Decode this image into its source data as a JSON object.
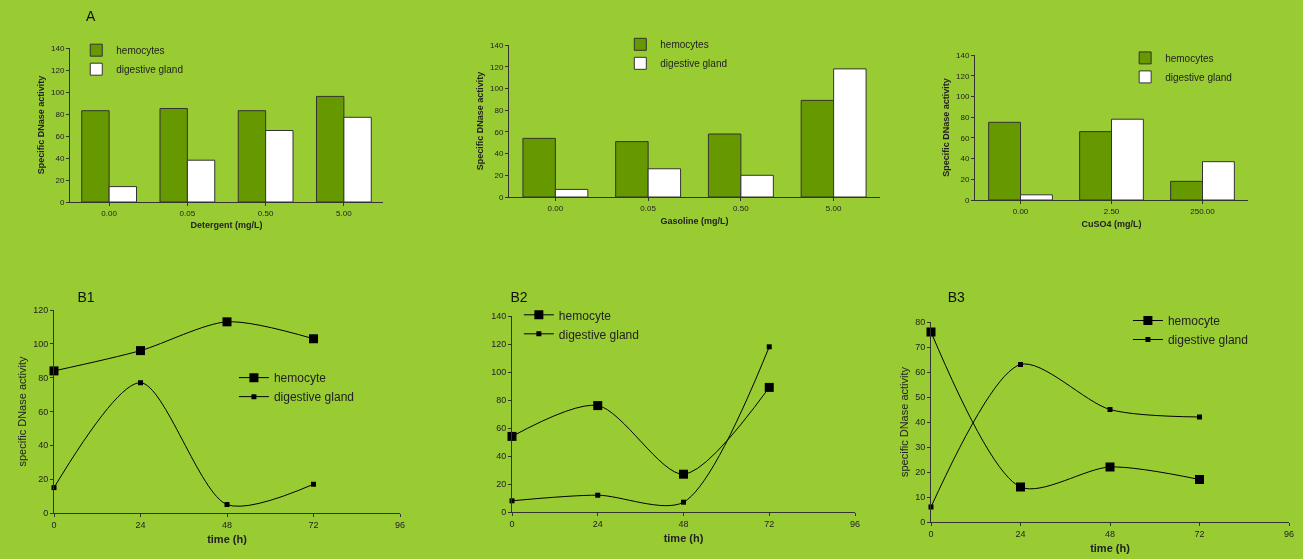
{
  "chart_data": [
    {
      "type": "bar",
      "title": "A",
      "xlabel": "Detergent (mg/L)",
      "ylabel": "Specific DNase activity",
      "categories": [
        "0.00",
        "0.05",
        "0.50",
        "5.00"
      ],
      "ylim": [
        0,
        140
      ],
      "yticks": [
        0,
        20,
        40,
        60,
        80,
        100,
        120,
        140
      ],
      "legend": "top left",
      "series": [
        {
          "name": "hemocytes",
          "color": "#669900",
          "values": [
            83,
            85,
            83,
            96
          ]
        },
        {
          "name": "digestive gland",
          "color": "#ffffff",
          "values": [
            14,
            38,
            65,
            77
          ]
        }
      ]
    },
    {
      "type": "bar",
      "xlabel": "Gasoline (mg/L)",
      "ylabel": "Specific DNase activity",
      "categories": [
        "0.00",
        "0.05",
        "0.50",
        "5.00"
      ],
      "ylim": [
        0,
        140
      ],
      "yticks": [
        0,
        20,
        40,
        60,
        80,
        100,
        120,
        140
      ],
      "legend": "top",
      "series": [
        {
          "name": "hemocytes",
          "color": "#669900",
          "values": [
            54,
            51,
            58,
            89
          ]
        },
        {
          "name": "digestive gland",
          "color": "#ffffff",
          "values": [
            7,
            26,
            20,
            118
          ]
        }
      ]
    },
    {
      "type": "bar",
      "xlabel": "CuSO4 (mg/L)",
      "ylabel": "Specific DNase activity",
      "categories": [
        "0.00",
        "2.50",
        "250.00"
      ],
      "ylim": [
        0,
        140
      ],
      "yticks": [
        0,
        20,
        40,
        60,
        80,
        100,
        120,
        140
      ],
      "legend": "top right",
      "series": [
        {
          "name": "hemocytes",
          "color": "#669900",
          "values": [
            75,
            66,
            18
          ]
        },
        {
          "name": "digestive gland",
          "color": "#ffffff",
          "values": [
            5,
            78,
            37
          ]
        }
      ]
    },
    {
      "type": "line",
      "title": "B1",
      "xlabel": "time (h)",
      "ylabel": "specific DNase activity",
      "x": [
        0,
        24,
        48,
        72
      ],
      "xlim": [
        0,
        96
      ],
      "xticks": [
        0,
        24,
        48,
        72,
        96
      ],
      "ylim": [
        0,
        120
      ],
      "yticks": [
        0,
        20,
        40,
        60,
        80,
        100,
        120
      ],
      "legend": "right",
      "marker": "square",
      "line_style": "solid",
      "series": [
        {
          "name": "hemocyte",
          "color": "#000000",
          "values": [
            84,
            96,
            113,
            103
          ]
        },
        {
          "name": "digestive gland",
          "color": "#000000",
          "values": [
            15,
            77,
            5,
            17
          ]
        }
      ]
    },
    {
      "type": "line",
      "title": "B2",
      "xlabel": "time (h)",
      "x": [
        0,
        24,
        48,
        72
      ],
      "xlim": [
        0,
        96
      ],
      "xticks": [
        0,
        24,
        48,
        72,
        96
      ],
      "ylim": [
        0,
        140
      ],
      "yticks": [
        0,
        20,
        40,
        60,
        80,
        100,
        120,
        140
      ],
      "legend": "top left",
      "marker": "square",
      "line_style": "solid",
      "series": [
        {
          "name": "hemocyte",
          "color": "#000000",
          "values": [
            54,
            76,
            27,
            89
          ]
        },
        {
          "name": "digestive gland",
          "color": "#000000",
          "values": [
            8,
            12,
            7,
            118
          ]
        }
      ]
    },
    {
      "type": "line",
      "title": "B3",
      "xlabel": "time (h)",
      "ylabel": "specific DNase activity",
      "x": [
        0,
        24,
        48,
        72
      ],
      "xlim": [
        0,
        96
      ],
      "xticks": [
        0,
        24,
        48,
        72,
        96
      ],
      "ylim": [
        0,
        80
      ],
      "yticks": [
        0,
        10,
        20,
        30,
        40,
        50,
        60,
        70,
        80
      ],
      "legend": "top right",
      "marker": "square",
      "line_style": "solid",
      "series": [
        {
          "name": "hemocyte",
          "color": "#000000",
          "values": [
            76,
            14,
            22,
            17
          ]
        },
        {
          "name": "digestive gland",
          "color": "#000000",
          "values": [
            6,
            63,
            45,
            42
          ]
        }
      ]
    }
  ]
}
